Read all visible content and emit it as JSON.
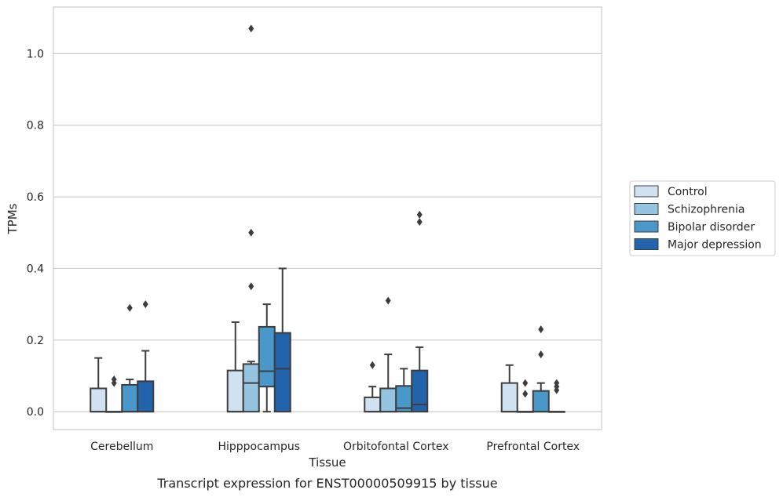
{
  "chart_data": {
    "type": "boxplot",
    "xlabel": "Tissue",
    "ylabel": "TPMs",
    "caption": "Transcript expression for ENST00000509915 by tissue",
    "ylim": [
      -0.05,
      1.13
    ],
    "yticks": [
      0.0,
      0.2,
      0.4,
      0.6,
      0.8,
      1.0
    ],
    "ytick_labels": [
      "0.0",
      "0.2",
      "0.4",
      "0.6",
      "0.8",
      "1.0"
    ],
    "grid": "horizontal",
    "legend_position": "right",
    "categories": [
      "Cerebellum",
      "Hipppocampus",
      "Orbitofontal Cortex",
      "Prefrontal Cortex"
    ],
    "series": [
      {
        "name": "Control",
        "color": "#d0e1f2",
        "boxes": [
          {
            "q1": 0.0,
            "median": 0.0,
            "q3": 0.065,
            "whislo": 0.0,
            "whishi": 0.15,
            "fliers": []
          },
          {
            "q1": 0.0,
            "median": 0.0,
            "q3": 0.115,
            "whislo": 0.0,
            "whishi": 0.25,
            "fliers": []
          },
          {
            "q1": 0.0,
            "median": 0.0,
            "q3": 0.04,
            "whislo": 0.0,
            "whishi": 0.07,
            "fliers": [
              0.13
            ]
          },
          {
            "q1": 0.0,
            "median": 0.0,
            "q3": 0.08,
            "whislo": 0.0,
            "whishi": 0.13,
            "fliers": []
          }
        ]
      },
      {
        "name": "Schizophrenia",
        "color": "#94c4df",
        "boxes": [
          {
            "q1": 0.0,
            "median": 0.0,
            "q3": 0.0,
            "whislo": 0.0,
            "whishi": 0.0,
            "fliers": [
              0.08,
              0.09
            ]
          },
          {
            "q1": 0.0,
            "median": 0.08,
            "q3": 0.133,
            "whislo": 0.0,
            "whishi": 0.14,
            "fliers": [
              0.35,
              0.5,
              1.07
            ]
          },
          {
            "q1": 0.0,
            "median": 0.0,
            "q3": 0.065,
            "whislo": 0.0,
            "whishi": 0.16,
            "fliers": [
              0.31
            ]
          },
          {
            "q1": 0.0,
            "median": 0.0,
            "q3": 0.0,
            "whislo": 0.0,
            "whishi": 0.0,
            "fliers": [
              0.05,
              0.08
            ]
          }
        ]
      },
      {
        "name": "Bipolar disorder",
        "color": "#4a98c9",
        "boxes": [
          {
            "q1": 0.0,
            "median": 0.0,
            "q3": 0.075,
            "whislo": 0.0,
            "whishi": 0.09,
            "fliers": [
              0.29
            ]
          },
          {
            "q1": 0.07,
            "median": 0.113,
            "q3": 0.237,
            "whislo": 0.0,
            "whishi": 0.3,
            "fliers": []
          },
          {
            "q1": 0.0,
            "median": 0.01,
            "q3": 0.072,
            "whislo": 0.0,
            "whishi": 0.12,
            "fliers": []
          },
          {
            "q1": 0.0,
            "median": 0.0,
            "q3": 0.058,
            "whislo": 0.0,
            "whishi": 0.08,
            "fliers": [
              0.16,
              0.23
            ]
          }
        ]
      },
      {
        "name": "Major depression",
        "color": "#2164ab",
        "boxes": [
          {
            "q1": 0.0,
            "median": 0.0,
            "q3": 0.085,
            "whislo": 0.0,
            "whishi": 0.17,
            "fliers": [
              0.3
            ]
          },
          {
            "q1": 0.0,
            "median": 0.12,
            "q3": 0.22,
            "whislo": 0.0,
            "whishi": 0.4,
            "fliers": []
          },
          {
            "q1": 0.0,
            "median": 0.02,
            "q3": 0.115,
            "whislo": 0.0,
            "whishi": 0.18,
            "fliers": [
              0.53,
              0.55
            ]
          },
          {
            "q1": 0.0,
            "median": 0.0,
            "q3": 0.0,
            "whislo": 0.0,
            "whishi": 0.0,
            "fliers": [
              0.06,
              0.07,
              0.08
            ]
          }
        ]
      }
    ]
  }
}
